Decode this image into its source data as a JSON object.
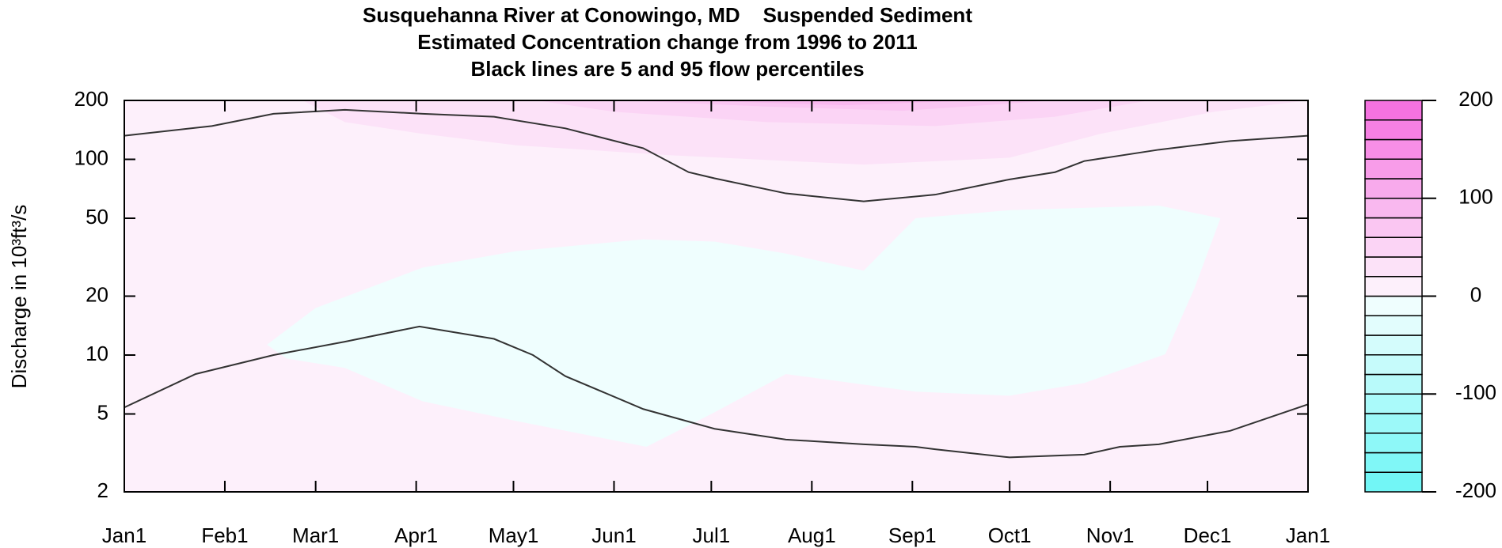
{
  "chart_data": {
    "type": "contour",
    "title": [
      "Susquehanna River at Conowingo, MD    Suspended Sediment",
      "Estimated Concentration change from 1996 to 2011",
      "Black lines are 5 and 95 flow percentiles"
    ],
    "y_label": "Discharge in 10³ft³/s",
    "xlim": [
      0,
      365
    ],
    "xticks": [
      {
        "value": 0,
        "label": "Jan1"
      },
      {
        "value": 31,
        "label": "Feb1"
      },
      {
        "value": 59,
        "label": "Mar1"
      },
      {
        "value": 90,
        "label": "Apr1"
      },
      {
        "value": 120,
        "label": "May1"
      },
      {
        "value": 151,
        "label": "Jun1"
      },
      {
        "value": 181,
        "label": "Jul1"
      },
      {
        "value": 212,
        "label": "Aug1"
      },
      {
        "value": 243,
        "label": "Sep1"
      },
      {
        "value": 273,
        "label": "Oct1"
      },
      {
        "value": 304,
        "label": "Nov1"
      },
      {
        "value": 334,
        "label": "Dec1"
      },
      {
        "value": 365,
        "label": "Jan1"
      }
    ],
    "ylim": [
      2,
      200
    ],
    "yticks": [
      2,
      5,
      10,
      20,
      50,
      100,
      200
    ],
    "log_y": true,
    "y2lim": [
      -200,
      200
    ],
    "y2ticks": [
      -200,
      -100,
      0,
      100,
      200
    ],
    "levels": [
      -200,
      -180,
      -160,
      -140,
      -120,
      -100,
      -80,
      -60,
      -40,
      -20,
      0,
      20,
      40,
      60,
      80,
      100,
      120,
      140,
      160,
      180,
      200
    ],
    "colors": [
      "#72f6f6",
      "#80f7f7",
      "#8ef8f8",
      "#9cf9f9",
      "#aafafa",
      "#b8fafa",
      "#c6fbfb",
      "#d4fcfc",
      "#e2fdfd",
      "#effefe",
      "#fdf0fb",
      "#fce2f8",
      "#fbd4f5",
      "#fac6f2",
      "#f9b8ef",
      "#f8aaec",
      "#f89ce9",
      "#f78ee6",
      "#f680e3",
      "#f572e0"
    ],
    "regions": [
      {
        "range": [
          0,
          20
        ],
        "x": [
          0,
          365,
          365,
          0
        ],
        "y": [
          2,
          2,
          200,
          200
        ]
      },
      {
        "range": [
          -20,
          0
        ],
        "x": [
          44,
          59,
          92,
          121,
          160,
          182,
          204,
          228,
          244,
          273,
          319,
          338,
          330,
          321,
          296,
          273,
          244,
          204,
          182,
          161,
          121,
          92,
          68,
          50
        ],
        "y": [
          11.3,
          17.4,
          28,
          34,
          39,
          38,
          33,
          27,
          50,
          55,
          58,
          50,
          22,
          10.1,
          7.2,
          6.2,
          6.5,
          8.0,
          5.1,
          3.4,
          4.6,
          5.8,
          8.6,
          9.6
        ]
      },
      {
        "range": [
          20,
          40
        ],
        "x": [
          55,
          68,
          92,
          121,
          168,
          228,
          273,
          301,
          336,
          365
        ],
        "y": [
          200,
          155,
          135,
          118,
          105,
          94,
          102,
          135,
          175,
          200
        ]
      },
      {
        "range": [
          40,
          60
        ],
        "x": [
          127,
          151,
          198,
          250,
          287,
          316
        ],
        "y": [
          200,
          175,
          155,
          148,
          165,
          200
        ]
      },
      {
        "range": [
          60,
          80
        ],
        "x": [
          154,
          198,
          240,
          287
        ],
        "y": [
          200,
          186,
          177,
          200
        ]
      },
      {
        "range": [
          80,
          100
        ],
        "x": [
          174,
          222,
          263
        ],
        "y": [
          200,
          189,
          200
        ]
      }
    ],
    "series": [
      {
        "color": "#333333",
        "x": [
          0,
          27,
          46,
          68,
          92,
          114,
          136,
          160,
          174,
          182,
          204,
          228,
          250,
          273,
          287,
          296,
          319,
          341,
          365
        ],
        "values": [
          132,
          148,
          171,
          179,
          171,
          165,
          144,
          114,
          86,
          80,
          67,
          61,
          66,
          79,
          86,
          98,
          112,
          124,
          132
        ]
      },
      {
        "color": "#333333",
        "x": [
          0,
          22,
          46,
          68,
          91,
          114,
          126,
          136,
          160,
          182,
          204,
          228,
          244,
          250,
          273,
          296,
          307,
          319,
          341,
          365
        ],
        "values": [
          5.4,
          8.0,
          10.0,
          11.7,
          14.0,
          12.1,
          10.0,
          7.8,
          5.3,
          4.2,
          3.7,
          3.5,
          3.4,
          3.3,
          3.0,
          3.1,
          3.4,
          3.5,
          4.1,
          5.6
        ]
      }
    ]
  }
}
